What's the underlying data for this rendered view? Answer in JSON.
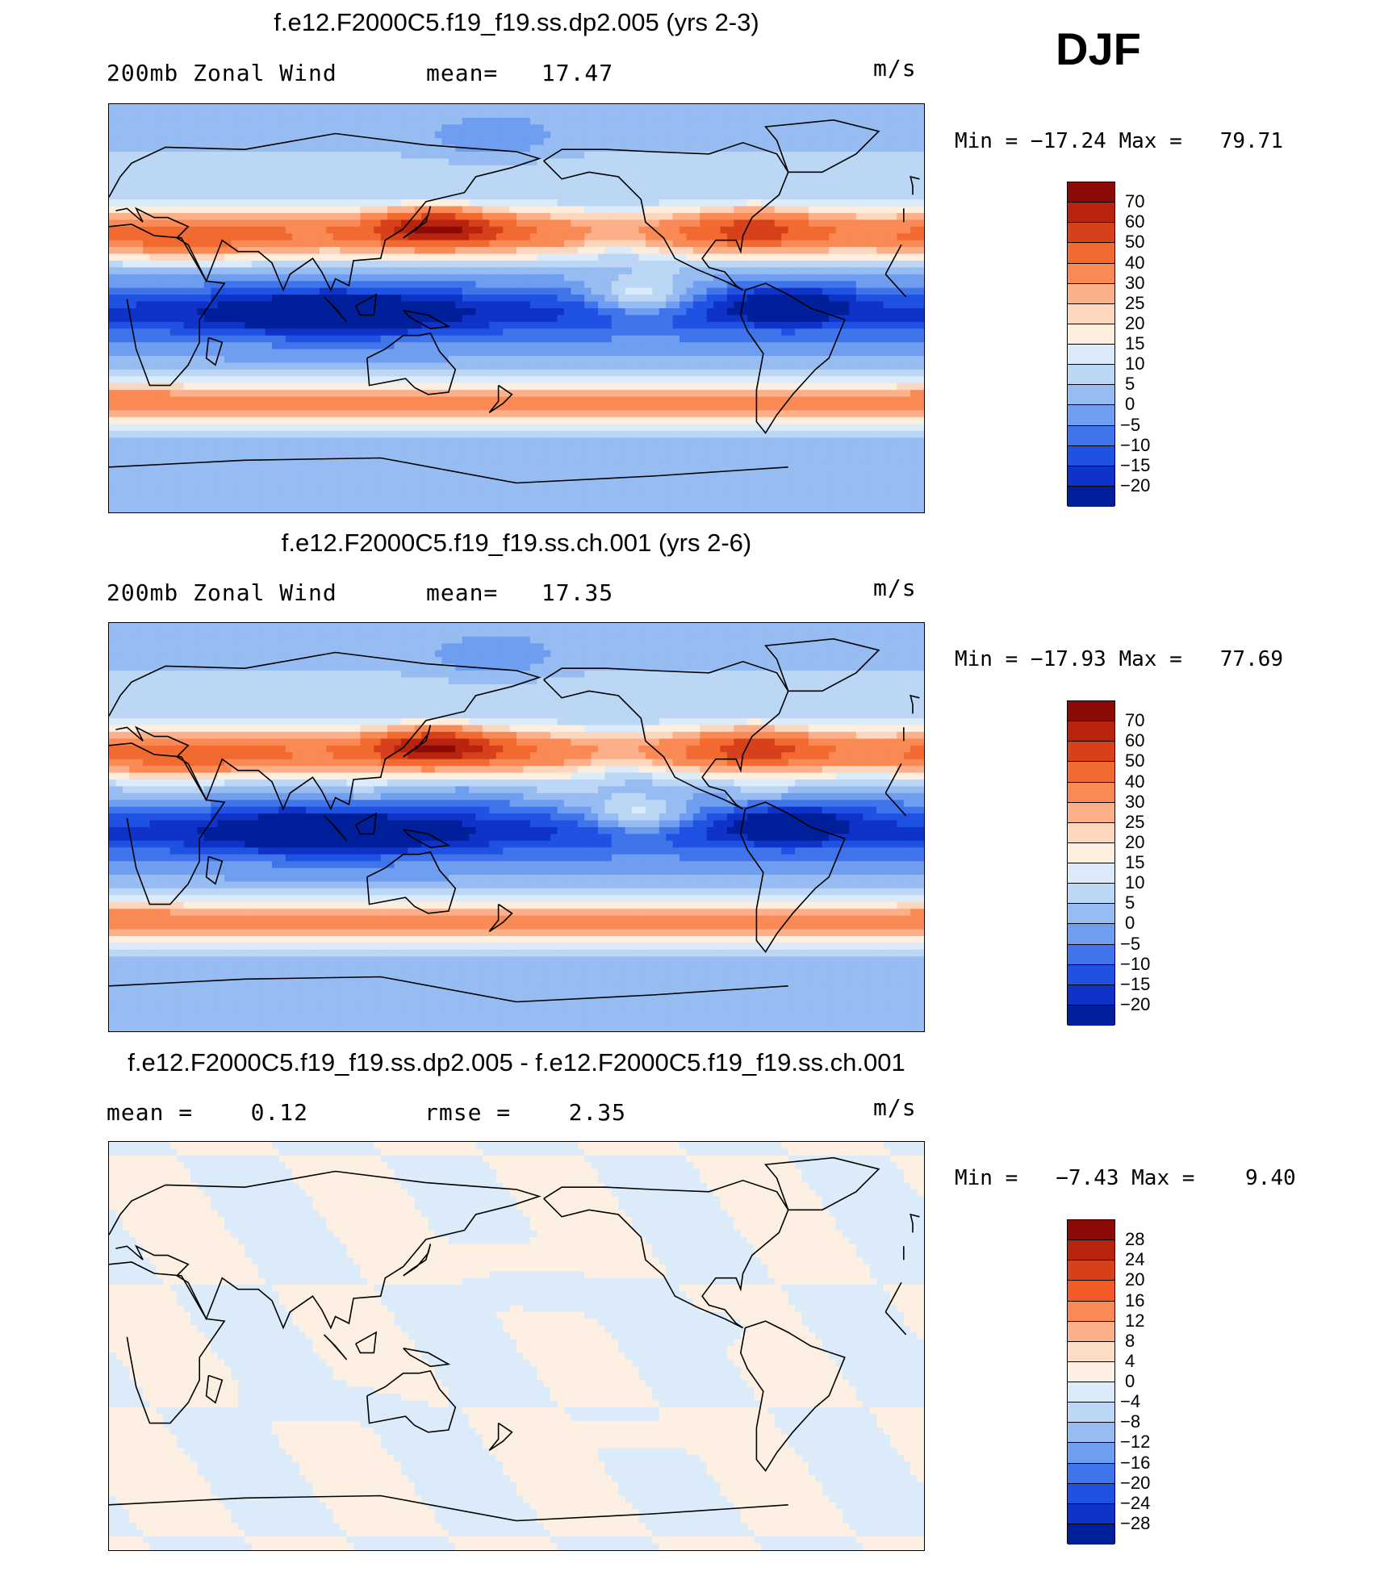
{
  "season": "DJF",
  "panels": [
    {
      "title": "f.e12.F2000C5.f19_f19.ss.dp2.005 (yrs 2-3)",
      "left_label": "200mb Zonal Wind",
      "mid_label": "mean=   17.47",
      "units": "m/s",
      "minmax": "Min = −17.24 Max =   79.71",
      "field": "case1",
      "colorbar": {
        "colors": [
          "#8b0a05",
          "#b8240d",
          "#d6401a",
          "#f26a30",
          "#f98a55",
          "#fbb08a",
          "#fcd6bd",
          "#fdeede",
          "#dcebf9",
          "#bcd6f5",
          "#96bcf2",
          "#6f9ef0",
          "#3f74ea",
          "#1f52e2",
          "#0f33c8",
          "#001f9a"
        ],
        "ticks": [
          "70",
          "60",
          "50",
          "40",
          "30",
          "25",
          "20",
          "15",
          "10",
          "5",
          "0",
          "−5",
          "−10",
          "−15",
          "−20"
        ]
      }
    },
    {
      "title": "f.e12.F2000C5.f19_f19.ss.ch.001 (yrs 2-6)",
      "left_label": "200mb Zonal Wind",
      "mid_label": "mean=   17.35",
      "units": "m/s",
      "minmax": "Min = −17.93 Max =   77.69",
      "field": "case2",
      "colorbar": {
        "colors": [
          "#8b0a05",
          "#b8240d",
          "#d6401a",
          "#f26a30",
          "#f98a55",
          "#fbb08a",
          "#fcd6bd",
          "#fdeede",
          "#dcebf9",
          "#bcd6f5",
          "#96bcf2",
          "#6f9ef0",
          "#3f74ea",
          "#1f52e2",
          "#0f33c8",
          "#001f9a"
        ],
        "ticks": [
          "70",
          "60",
          "50",
          "40",
          "30",
          "25",
          "20",
          "15",
          "10",
          "5",
          "0",
          "−5",
          "−10",
          "−15",
          "−20"
        ]
      }
    },
    {
      "title": "f.e12.F2000C5.f19_f19.ss.dp2.005 - f.e12.F2000C5.f19_f19.ss.ch.001",
      "left_label": "mean =    0.12",
      "mid_label": "rmse =    2.35",
      "units": "m/s",
      "minmax": "Min =   −7.43 Max =    9.40",
      "field": "diff",
      "colorbar": {
        "colors": [
          "#8b0a05",
          "#b8240d",
          "#d6401a",
          "#f25a28",
          "#f98a55",
          "#fbb08a",
          "#fcdcc4",
          "#fdf0e2",
          "#dcebf9",
          "#bcd6f5",
          "#96bcf2",
          "#6f9ef0",
          "#3f74ea",
          "#1f52e2",
          "#0f33c8",
          "#001f9a"
        ],
        "ticks": [
          "28",
          "24",
          "20",
          "16",
          "12",
          "8",
          "4",
          "0",
          "−4",
          "−8",
          "−12",
          "−16",
          "−20",
          "−24",
          "−28"
        ]
      }
    }
  ]
}
